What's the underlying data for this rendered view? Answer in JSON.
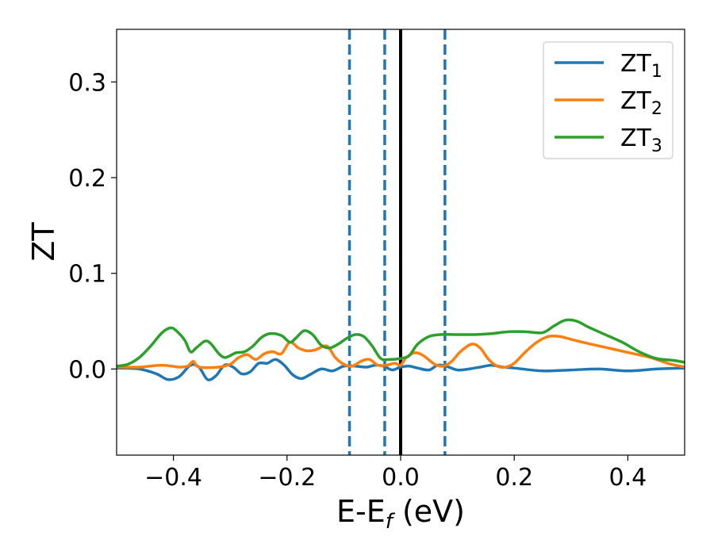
{
  "chart_data": {
    "type": "line",
    "title": "",
    "xlabel": {
      "main": "E-E",
      "sub": "f",
      "unit": " (eV)"
    },
    "ylabel": "ZT",
    "xlim": [
      -0.5,
      0.5
    ],
    "ylim": [
      -0.09,
      0.355
    ],
    "x_ticks": [
      -0.4,
      -0.2,
      0.0,
      0.2,
      0.4
    ],
    "x_tick_labels": [
      "−0.4",
      "−0.2",
      "0.0",
      "0.2",
      "0.4"
    ],
    "y_ticks": [
      0.0,
      0.1,
      0.2,
      0.3
    ],
    "y_tick_labels": [
      "0.0",
      "0.1",
      "0.2",
      "0.3"
    ],
    "grid": false,
    "legend_position": "top-right",
    "vertical_lines": [
      {
        "x": -0.09,
        "style": "dashed",
        "color": "#1f77b4"
      },
      {
        "x": -0.028,
        "style": "dashed",
        "color": "#1f77b4"
      },
      {
        "x": 0.0,
        "style": "solid",
        "color": "#000000"
      },
      {
        "x": 0.078,
        "style": "dashed",
        "color": "#1f77b4"
      }
    ],
    "series": [
      {
        "name": "ZT",
        "sub": "1",
        "color": "#1f77b4",
        "points": [
          [
            -0.5,
            0.001
          ],
          [
            -0.46,
            0.0
          ],
          [
            -0.43,
            -0.005
          ],
          [
            -0.41,
            -0.011
          ],
          [
            -0.39,
            -0.008
          ],
          [
            -0.37,
            0.004
          ],
          [
            -0.355,
            0.002
          ],
          [
            -0.34,
            -0.011
          ],
          [
            -0.325,
            -0.007
          ],
          [
            -0.31,
            0.004
          ],
          [
            -0.295,
            0.002
          ],
          [
            -0.28,
            -0.005
          ],
          [
            -0.265,
            -0.003
          ],
          [
            -0.25,
            0.006
          ],
          [
            -0.235,
            0.006
          ],
          [
            -0.22,
            0.01
          ],
          [
            -0.205,
            0.004
          ],
          [
            -0.19,
            -0.006
          ],
          [
            -0.175,
            -0.01
          ],
          [
            -0.16,
            -0.006
          ],
          [
            -0.14,
            0.0
          ],
          [
            -0.12,
            -0.002
          ],
          [
            -0.1,
            0.003
          ],
          [
            -0.08,
            0.003
          ],
          [
            -0.06,
            0.002
          ],
          [
            -0.045,
            0.004
          ],
          [
            -0.03,
            0.003
          ],
          [
            -0.015,
            -0.001
          ],
          [
            0.0,
            0.002
          ],
          [
            0.015,
            0.003
          ],
          [
            0.03,
            0.001
          ],
          [
            0.05,
            -0.001
          ],
          [
            0.065,
            0.004
          ],
          [
            0.08,
            0.003
          ],
          [
            0.1,
            -0.001
          ],
          [
            0.12,
            0.0
          ],
          [
            0.14,
            0.002
          ],
          [
            0.16,
            0.004
          ],
          [
            0.18,
            0.002
          ],
          [
            0.2,
            0.001
          ],
          [
            0.25,
            -0.002
          ],
          [
            0.3,
            -0.001
          ],
          [
            0.35,
            0.0
          ],
          [
            0.4,
            -0.002
          ],
          [
            0.45,
            0.0
          ],
          [
            0.5,
            0.001
          ]
        ]
      },
      {
        "name": "ZT",
        "sub": "2",
        "color": "#ff7f0e",
        "points": [
          [
            -0.5,
            0.002
          ],
          [
            -0.46,
            0.002
          ],
          [
            -0.42,
            0.004
          ],
          [
            -0.39,
            0.002
          ],
          [
            -0.375,
            0.003
          ],
          [
            -0.365,
            0.008
          ],
          [
            -0.355,
            0.002
          ],
          [
            -0.32,
            0.002
          ],
          [
            -0.3,
            0.005
          ],
          [
            -0.285,
            0.012
          ],
          [
            -0.27,
            0.015
          ],
          [
            -0.255,
            0.01
          ],
          [
            -0.24,
            0.016
          ],
          [
            -0.225,
            0.018
          ],
          [
            -0.21,
            0.016
          ],
          [
            -0.195,
            0.028
          ],
          [
            -0.18,
            0.022
          ],
          [
            -0.165,
            0.019
          ],
          [
            -0.15,
            0.02
          ],
          [
            -0.13,
            0.024
          ],
          [
            -0.115,
            0.012
          ],
          [
            -0.1,
            0.005
          ],
          [
            -0.085,
            0.003
          ],
          [
            -0.07,
            0.008
          ],
          [
            -0.055,
            0.01
          ],
          [
            -0.04,
            0.004
          ],
          [
            -0.025,
            0.004
          ],
          [
            -0.01,
            0.006
          ],
          [
            0.0,
            0.004
          ],
          [
            0.01,
            0.012
          ],
          [
            0.025,
            0.017
          ],
          [
            0.04,
            0.014
          ],
          [
            0.06,
            0.005
          ],
          [
            0.075,
            0.003
          ],
          [
            0.09,
            0.008
          ],
          [
            0.105,
            0.018
          ],
          [
            0.125,
            0.026
          ],
          [
            0.14,
            0.022
          ],
          [
            0.155,
            0.01
          ],
          [
            0.17,
            0.003
          ],
          [
            0.185,
            0.002
          ],
          [
            0.2,
            0.006
          ],
          [
            0.22,
            0.018
          ],
          [
            0.24,
            0.028
          ],
          [
            0.26,
            0.034
          ],
          [
            0.28,
            0.034
          ],
          [
            0.3,
            0.031
          ],
          [
            0.32,
            0.028
          ],
          [
            0.35,
            0.024
          ],
          [
            0.38,
            0.02
          ],
          [
            0.41,
            0.016
          ],
          [
            0.44,
            0.012
          ],
          [
            0.47,
            0.006
          ],
          [
            0.5,
            0.002
          ]
        ]
      },
      {
        "name": "ZT",
        "sub": "3",
        "color": "#2ca02c",
        "points": [
          [
            -0.5,
            0.003
          ],
          [
            -0.48,
            0.005
          ],
          [
            -0.46,
            0.012
          ],
          [
            -0.44,
            0.024
          ],
          [
            -0.42,
            0.038
          ],
          [
            -0.405,
            0.043
          ],
          [
            -0.395,
            0.04
          ],
          [
            -0.38,
            0.03
          ],
          [
            -0.37,
            0.018
          ],
          [
            -0.36,
            0.022
          ],
          [
            -0.345,
            0.029
          ],
          [
            -0.335,
            0.027
          ],
          [
            -0.32,
            0.016
          ],
          [
            -0.31,
            0.012
          ],
          [
            -0.3,
            0.014
          ],
          [
            -0.29,
            0.017
          ],
          [
            -0.275,
            0.018
          ],
          [
            -0.26,
            0.024
          ],
          [
            -0.245,
            0.033
          ],
          [
            -0.23,
            0.037
          ],
          [
            -0.21,
            0.035
          ],
          [
            -0.195,
            0.028
          ],
          [
            -0.185,
            0.032
          ],
          [
            -0.17,
            0.04
          ],
          [
            -0.155,
            0.036
          ],
          [
            -0.14,
            0.025
          ],
          [
            -0.125,
            0.022
          ],
          [
            -0.11,
            0.026
          ],
          [
            -0.095,
            0.032
          ],
          [
            -0.08,
            0.036
          ],
          [
            -0.065,
            0.034
          ],
          [
            -0.05,
            0.024
          ],
          [
            -0.035,
            0.011
          ],
          [
            -0.02,
            0.01
          ],
          [
            0.0,
            0.011
          ],
          [
            0.015,
            0.014
          ],
          [
            0.03,
            0.026
          ],
          [
            0.05,
            0.034
          ],
          [
            0.07,
            0.036
          ],
          [
            0.1,
            0.036
          ],
          [
            0.13,
            0.036
          ],
          [
            0.16,
            0.037
          ],
          [
            0.19,
            0.039
          ],
          [
            0.22,
            0.039
          ],
          [
            0.25,
            0.038
          ],
          [
            0.27,
            0.045
          ],
          [
            0.29,
            0.051
          ],
          [
            0.31,
            0.05
          ],
          [
            0.33,
            0.044
          ],
          [
            0.36,
            0.036
          ],
          [
            0.39,
            0.028
          ],
          [
            0.42,
            0.018
          ],
          [
            0.45,
            0.011
          ],
          [
            0.48,
            0.009
          ],
          [
            0.5,
            0.007
          ]
        ]
      }
    ]
  }
}
